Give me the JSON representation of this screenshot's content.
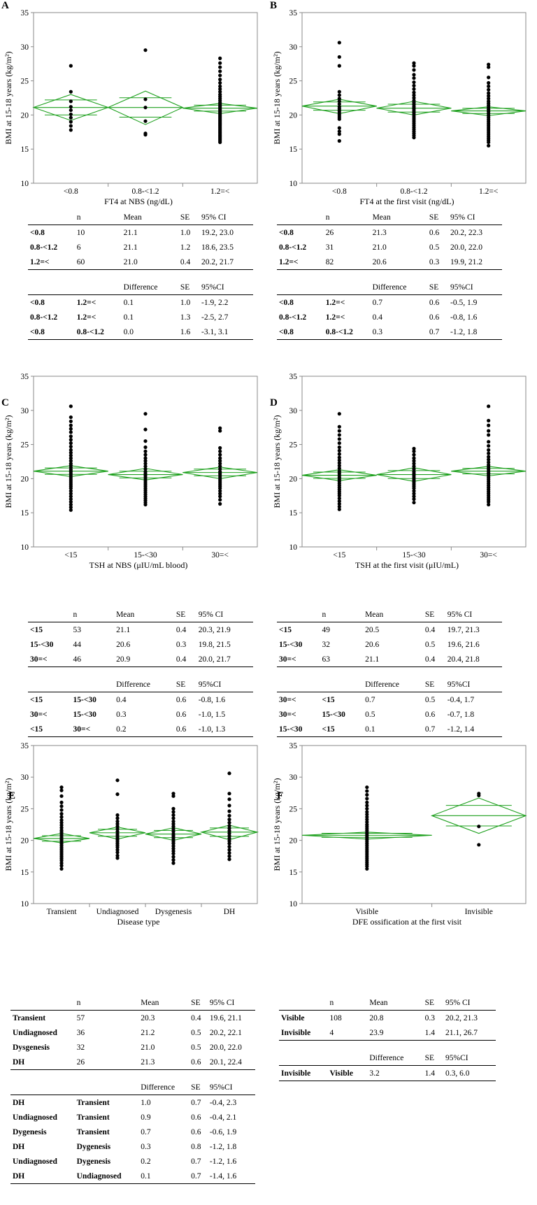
{
  "colors": {
    "fit": "#1ea01e",
    "dot": "#000000",
    "frame": "#8a8a8a"
  },
  "y_axis_label": "BMI at 15-18 years  (kg/m²)",
  "chart_data": [
    {
      "panel": "A",
      "type": "scatter",
      "title": "",
      "xlabel": "FT4 at  NBS (ng/dL)",
      "ylabel": "BMI at 15-18 years  (kg/m²)",
      "ylim": [
        10,
        35
      ],
      "yticks": [
        "10",
        "15",
        "20",
        "25",
        "30",
        "35"
      ],
      "categories": [
        "<0.8",
        "0.8-<1.2",
        "1.2=<"
      ],
      "means": [
        21.1,
        21.1,
        21.0
      ],
      "ci_low": [
        19.2,
        18.6,
        20.2
      ],
      "ci_high": [
        23.0,
        23.5,
        21.7
      ],
      "n": [
        10,
        6,
        60
      ],
      "points": [
        [
          27.2,
          23.4,
          22.0,
          21.2,
          20.7,
          20.1,
          19.6,
          19.0,
          18.4,
          17.8
        ],
        [
          29.5,
          22.3,
          21.1,
          19.1,
          17.3,
          17.1
        ],
        [
          28.3,
          27.6,
          27.0,
          26.4,
          25.8,
          25.2,
          24.7,
          24.2,
          23.8,
          23.4,
          23.0,
          22.7,
          22.4,
          22.1,
          21.8,
          21.6,
          21.4,
          21.2,
          21.0,
          20.8,
          20.6,
          20.4,
          20.2,
          20.0,
          19.8,
          19.6,
          19.4,
          19.2,
          19.0,
          18.8,
          18.6,
          18.4,
          18.2,
          18.0,
          17.8,
          17.6,
          17.4,
          17.2,
          17.0,
          16.8,
          16.6,
          16.4,
          16.2,
          16.0
        ]
      ]
    },
    {
      "panel": "B",
      "type": "scatter",
      "title": "",
      "xlabel": "FT4 at  the first visit (ng/dL)",
      "ylabel": "BMI at 15-18 years  (kg/m²)",
      "ylim": [
        10,
        35
      ],
      "yticks": [
        "10",
        "15",
        "20",
        "25",
        "30",
        "35"
      ],
      "categories": [
        "<0.8",
        "0.8-<1.2",
        "1.2=<"
      ],
      "means": [
        21.3,
        21.0,
        20.6
      ],
      "ci_low": [
        20.2,
        20.0,
        19.9
      ],
      "ci_high": [
        22.3,
        22.0,
        21.2
      ],
      "n": [
        26,
        31,
        82
      ],
      "points": [
        [
          30.6,
          28.5,
          27.2,
          23.4,
          22.9,
          22.4,
          22.0,
          21.6,
          21.2,
          20.9,
          20.6,
          20.3,
          20.0,
          19.7,
          19.4,
          18.1,
          17.6,
          17.2,
          16.2
        ],
        [
          27.6,
          27.2,
          26.6,
          25.9,
          25.4,
          24.8,
          24.3,
          23.8,
          23.3,
          22.9,
          22.5,
          22.1,
          21.8,
          21.5,
          21.2,
          20.9,
          20.6,
          20.3,
          20.0,
          19.7,
          19.4,
          19.1,
          18.8,
          18.5,
          18.2,
          17.9,
          17.6,
          17.3,
          17.0,
          16.7
        ],
        [
          27.4,
          27.0,
          25.5,
          24.7,
          24.2,
          23.7,
          23.2,
          22.8,
          22.4,
          22.0,
          21.7,
          21.4,
          21.1,
          20.8,
          20.5,
          20.2,
          19.9,
          19.6,
          19.3,
          19.0,
          18.7,
          18.4,
          18.1,
          17.8,
          17.5,
          17.2,
          16.9,
          16.6,
          16.3,
          16.0,
          15.5
        ]
      ]
    },
    {
      "panel": "C",
      "type": "scatter",
      "title": "",
      "xlabel": "TSH at  NBS (μIU/mL blood)",
      "ylabel": "BMI at 15-18 years  (kg/m²)",
      "ylim": [
        10,
        35
      ],
      "yticks": [
        "10",
        "15",
        "20",
        "25",
        "30",
        "35"
      ],
      "categories": [
        "<15",
        "15-<30",
        "30=<"
      ],
      "means": [
        21.1,
        20.6,
        20.9
      ],
      "ci_low": [
        20.3,
        19.8,
        20.0
      ],
      "ci_high": [
        21.9,
        21.5,
        21.7
      ],
      "n": [
        53,
        44,
        46
      ],
      "points": [
        [
          30.6,
          29.0,
          28.4,
          27.8,
          27.3,
          26.8,
          26.2,
          25.7,
          25.2,
          24.7,
          24.2,
          23.8,
          23.4,
          23.0,
          22.6,
          22.2,
          21.9,
          21.6,
          21.3,
          21.0,
          20.7,
          20.4,
          20.1,
          19.8,
          19.5,
          19.2,
          18.9,
          18.6,
          18.2,
          17.8,
          17.4,
          17.0,
          16.6,
          16.2,
          15.8,
          15.4
        ],
        [
          29.5,
          27.2,
          25.5,
          24.6,
          24.0,
          23.5,
          23.0,
          22.6,
          22.2,
          21.8,
          21.4,
          21.0,
          20.7,
          20.4,
          20.1,
          19.8,
          19.5,
          19.2,
          18.9,
          18.6,
          18.3,
          18.0,
          17.7,
          17.4,
          17.1,
          16.8,
          16.5,
          16.2
        ],
        [
          27.4,
          27.0,
          24.5,
          24.0,
          23.5,
          23.0,
          22.6,
          22.2,
          21.8,
          21.4,
          21.0,
          20.7,
          20.4,
          20.1,
          19.8,
          19.5,
          19.2,
          18.9,
          18.6,
          18.2,
          17.8,
          17.4,
          16.9,
          16.3
        ]
      ]
    },
    {
      "panel": "D",
      "type": "scatter",
      "title": "",
      "xlabel": "TSH at  the first visit (μIU/mL)",
      "ylabel": "BMI at 15-18 years  (kg/m²)",
      "ylim": [
        10,
        35
      ],
      "yticks": [
        "10",
        "15",
        "20",
        "25",
        "30",
        "35"
      ],
      "categories": [
        "<15",
        "15-<30",
        "30=<"
      ],
      "means": [
        20.5,
        20.6,
        21.1
      ],
      "ci_low": [
        19.7,
        19.6,
        20.4
      ],
      "ci_high": [
        21.3,
        21.6,
        21.8
      ],
      "n": [
        49,
        32,
        63
      ],
      "points": [
        [
          29.5,
          27.6,
          27.0,
          26.4,
          25.8,
          25.2,
          24.6,
          24.1,
          23.6,
          23.1,
          22.7,
          22.3,
          21.9,
          21.5,
          21.1,
          20.8,
          20.5,
          20.2,
          19.9,
          19.6,
          19.3,
          19.0,
          18.7,
          18.4,
          18.1,
          17.8,
          17.5,
          17.1,
          16.7,
          16.3,
          15.9,
          15.5
        ],
        [
          24.4,
          24.0,
          23.5,
          23.0,
          22.6,
          22.2,
          21.8,
          21.4,
          21.0,
          20.7,
          20.4,
          20.1,
          19.8,
          19.5,
          19.2,
          18.9,
          18.6,
          18.2,
          17.8,
          17.4,
          17.0,
          16.5
        ],
        [
          30.6,
          28.5,
          27.8,
          27.0,
          26.4,
          25.4,
          24.8,
          24.2,
          23.7,
          23.2,
          22.8,
          22.4,
          22.0,
          21.7,
          21.4,
          21.1,
          20.8,
          20.5,
          20.2,
          19.9,
          19.6,
          19.3,
          19.0,
          18.7,
          18.4,
          18.1,
          17.8,
          17.5,
          17.2,
          16.9,
          16.6,
          16.2
        ]
      ]
    },
    {
      "panel": "E",
      "type": "scatter",
      "title": "",
      "xlabel": "Disease type",
      "ylabel": "BMI at 15-18 years  (kg/m²)",
      "ylim": [
        10,
        35
      ],
      "yticks": [
        "10",
        "15",
        "20",
        "25",
        "30",
        "35"
      ],
      "categories": [
        "Transient",
        "Undiagnosed",
        "Dysgenesis",
        "DH"
      ],
      "means": [
        20.3,
        21.2,
        21.0,
        21.3
      ],
      "ci_low": [
        19.6,
        20.2,
        20.0,
        20.1
      ],
      "ci_high": [
        21.1,
        22.1,
        22.0,
        22.4
      ],
      "n": [
        57,
        36,
        32,
        26
      ],
      "points": [
        [
          28.4,
          27.9,
          27.0,
          26.0,
          25.4,
          24.8,
          24.2,
          23.7,
          23.2,
          22.8,
          22.4,
          22.0,
          21.6,
          21.3,
          21.0,
          20.7,
          20.4,
          20.1,
          19.8,
          19.5,
          19.2,
          18.9,
          18.6,
          18.3,
          18.0,
          17.7,
          17.4,
          17.1,
          16.8,
          16.4,
          16.0,
          15.5
        ],
        [
          29.5,
          27.3,
          24.0,
          23.5,
          23.0,
          22.6,
          22.2,
          21.8,
          21.4,
          21.0,
          20.7,
          20.4,
          20.1,
          19.8,
          19.5,
          19.2,
          18.9,
          18.5,
          18.1,
          17.6,
          17.2
        ],
        [
          27.4,
          27.0,
          25.0,
          24.5,
          24.0,
          23.5,
          23.0,
          22.6,
          22.2,
          21.8,
          21.4,
          21.0,
          20.7,
          20.4,
          20.1,
          19.8,
          19.5,
          19.1,
          18.7,
          18.3,
          17.9,
          17.4,
          16.9,
          16.4
        ],
        [
          30.6,
          27.4,
          26.5,
          25.5,
          24.6,
          23.9,
          23.3,
          22.8,
          22.3,
          21.9,
          21.5,
          21.1,
          20.7,
          20.3,
          19.9,
          19.5,
          19.0,
          18.5,
          18.0,
          17.5,
          17.0
        ]
      ]
    },
    {
      "panel": "F",
      "type": "scatter",
      "title": "",
      "xlabel": "DFE ossification at  the first visit",
      "ylabel": "BMI at 15-18 years  (kg/m²)",
      "ylim": [
        10,
        35
      ],
      "yticks": [
        "10",
        "15",
        "20",
        "25",
        "30",
        "35"
      ],
      "categories": [
        "Visible",
        "Invisible"
      ],
      "means": [
        20.8,
        23.9
      ],
      "ci_low": [
        20.2,
        21.1
      ],
      "ci_high": [
        21.3,
        26.7
      ],
      "n": [
        108,
        4
      ],
      "points": [
        [
          28.4,
          27.8,
          27.2,
          26.6,
          26.0,
          25.5,
          25.0,
          24.5,
          24.1,
          23.7,
          23.3,
          22.9,
          22.5,
          22.2,
          21.9,
          21.6,
          21.3,
          21.0,
          20.7,
          20.4,
          20.1,
          19.8,
          19.5,
          19.2,
          18.9,
          18.6,
          18.3,
          18.0,
          17.7,
          17.4,
          17.1,
          16.8,
          16.5,
          16.2,
          15.9,
          15.5
        ],
        [
          27.4,
          27.1,
          22.2,
          19.3
        ]
      ]
    }
  ],
  "tables": {
    "A": {
      "head1": [
        "",
        "n",
        "Mean",
        "SE",
        "95% CI"
      ],
      "rows1": [
        [
          "<0.8",
          "10",
          "21.1",
          "1.0",
          "19.2, 23.0"
        ],
        [
          "0.8-<1.2",
          "6",
          "21.1",
          "1.2",
          "18.6, 23.5"
        ],
        [
          "1.2=<",
          "60",
          "21.0",
          "0.4",
          "20.2, 21.7"
        ]
      ],
      "head2": [
        "",
        "",
        "Difference",
        "SE",
        "95%CI"
      ],
      "rows2": [
        [
          "<0.8",
          "1.2=<",
          "0.1",
          "1.0",
          "-1.9, 2.2"
        ],
        [
          "0.8-<1.2",
          "1.2=<",
          "0.1",
          "1.3",
          "-2.5, 2.7"
        ],
        [
          "<0.8",
          "0.8-<1.2",
          "0.0",
          "1.6",
          "-3.1, 3.1"
        ]
      ]
    },
    "B": {
      "head1": [
        "",
        "n",
        "Mean",
        "SE",
        "95% CI"
      ],
      "rows1": [
        [
          "<0.8",
          "26",
          "21.3",
          "0.6",
          "20.2, 22.3"
        ],
        [
          "0.8-<1.2",
          "31",
          "21.0",
          "0.5",
          "20.0, 22.0"
        ],
        [
          "1.2=<",
          "82",
          "20.6",
          "0.3",
          "19.9, 21.2"
        ]
      ],
      "head2": [
        "",
        "",
        "Difference",
        "SE",
        "95%CI"
      ],
      "rows2": [
        [
          "<0.8",
          "1.2=<",
          "0.7",
          "0.6",
          "-0.5, 1.9"
        ],
        [
          "0.8-<1.2",
          "1.2=<",
          "0.4",
          "0.6",
          "-0.8, 1.6"
        ],
        [
          "<0.8",
          "0.8-<1.2",
          "0.3",
          "0.7",
          "-1.2, 1.8"
        ]
      ]
    },
    "C": {
      "head1": [
        "",
        "n",
        "Mean",
        "SE",
        "95% CI"
      ],
      "rows1": [
        [
          "<15",
          "53",
          "21.1",
          "0.4",
          "20.3, 21.9"
        ],
        [
          "15-<30",
          "44",
          "20.6",
          "0.3",
          "19.8, 21.5"
        ],
        [
          "30=<",
          "46",
          "20.9",
          "0.4",
          "20.0, 21.7"
        ]
      ],
      "head2": [
        "",
        "",
        "Difference",
        "SE",
        "95%CI"
      ],
      "rows2": [
        [
          "<15",
          "15-<30",
          "0.4",
          "0.6",
          "-0.8, 1.6"
        ],
        [
          "30=<",
          "15-<30",
          "0.3",
          "0.6",
          "-1.0, 1.5"
        ],
        [
          "<15",
          "30=<",
          "0.2",
          "0.6",
          "-1.0, 1.3"
        ]
      ]
    },
    "D": {
      "head1": [
        "",
        "n",
        "Mean",
        "SE",
        "95% CI"
      ],
      "rows1": [
        [
          "<15",
          "49",
          "20.5",
          "0.4",
          "19.7, 21.3"
        ],
        [
          "15-<30",
          "32",
          "20.6",
          "0.5",
          "19.6, 21.6"
        ],
        [
          "30=<",
          "63",
          "21.1",
          "0.4",
          "20.4, 21.8"
        ]
      ],
      "head2": [
        "",
        "",
        "Difference",
        "SE",
        "95%CI"
      ],
      "rows2": [
        [
          "30=<",
          "<15",
          "0.7",
          "0.5",
          "-0.4, 1.7"
        ],
        [
          "30=<",
          "15-<30",
          "0.5",
          "0.6",
          "-0.7, 1.8"
        ],
        [
          "15-<30",
          "<15",
          "0.1",
          "0.7",
          "-1.2, 1.4"
        ]
      ]
    },
    "E": {
      "head1": [
        "",
        "n",
        "Mean",
        "SE",
        "95% CI"
      ],
      "rows1": [
        [
          "Transient",
          "57",
          "20.3",
          "0.4",
          "19.6, 21.1"
        ],
        [
          "Undiagnosed",
          "36",
          "21.2",
          "0.5",
          "20.2, 22.1"
        ],
        [
          "Dysgenesis",
          "32",
          "21.0",
          "0.5",
          "20.0, 22.0"
        ],
        [
          "DH",
          "26",
          "21.3",
          "0.6",
          "20.1, 22.4"
        ]
      ],
      "head2": [
        "",
        "",
        "Difference",
        "SE",
        "95%CI"
      ],
      "rows2": [
        [
          "DH",
          "Transient",
          "1.0",
          "0.7",
          "-0.4, 2.3"
        ],
        [
          "Undiagnosed",
          "Transient",
          "0.9",
          "0.6",
          "-0.4, 2.1"
        ],
        [
          "Dygenesis",
          "Transient",
          "0.7",
          "0.6",
          "-0.6, 1.9"
        ],
        [
          "DH",
          "Dygenesis",
          "0.3",
          "0.8",
          "-1.2, 1.8"
        ],
        [
          "Undiagnosed",
          "Dygenesis",
          "0.2",
          "0.7",
          "-1.2, 1.6"
        ],
        [
          "DH",
          "Undiagnosed",
          "0.1",
          "0.7",
          "-1.4, 1.6"
        ]
      ]
    },
    "F": {
      "head1": [
        "",
        "n",
        "Mean",
        "SE",
        "95% CI"
      ],
      "rows1": [
        [
          "Visible",
          "108",
          "20.8",
          "0.3",
          "20.2, 21.3"
        ],
        [
          "Invisible",
          "4",
          "23.9",
          "1.4",
          "21.1, 26.7"
        ]
      ],
      "head2": [
        "",
        "",
        "Difference",
        "SE",
        "95%CI"
      ],
      "rows2": [
        [
          "Invisible",
          "Visible",
          "3.2",
          "1.4",
          "0.3, 6.0"
        ]
      ]
    }
  }
}
